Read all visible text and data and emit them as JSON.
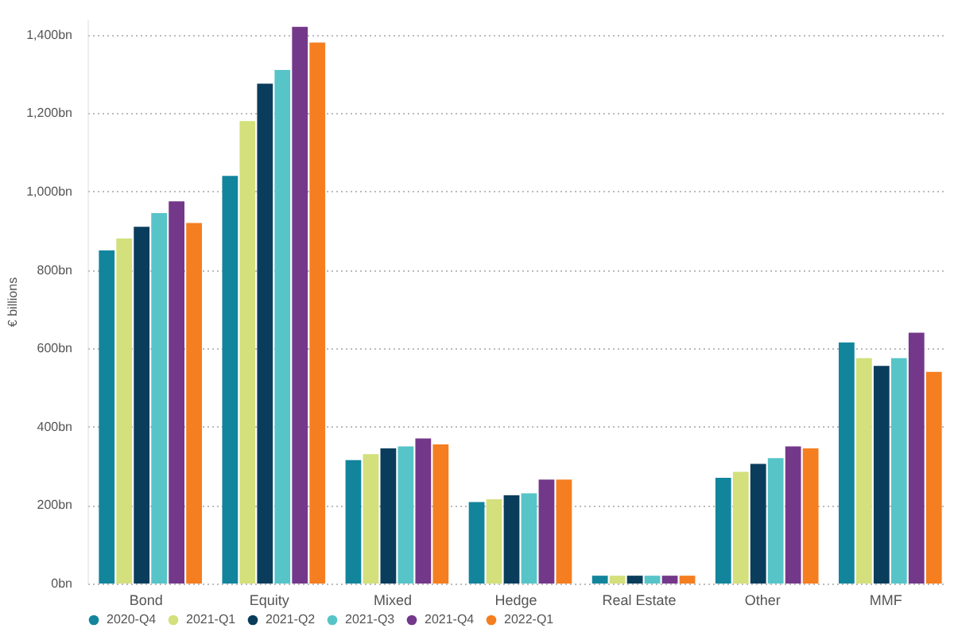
{
  "chart_data": {
    "type": "bar",
    "ylabel": "€ billions",
    "categories": [
      "Bond",
      "Equity",
      "Mixed",
      "Hedge",
      "Real Estate",
      "Other",
      "MMF"
    ],
    "series": [
      {
        "name": "2020-Q4",
        "color": "#12859c",
        "values": [
          850,
          1040,
          315,
          208,
          20,
          270,
          615
        ]
      },
      {
        "name": "2021-Q1",
        "color": "#d3e07c",
        "values": [
          880,
          1180,
          330,
          215,
          20,
          285,
          575
        ]
      },
      {
        "name": "2021-Q2",
        "color": "#0a3d5c",
        "values": [
          910,
          1275,
          345,
          225,
          20,
          305,
          555
        ]
      },
      {
        "name": "2021-Q3",
        "color": "#57c4c8",
        "values": [
          945,
          1310,
          350,
          230,
          20,
          320,
          575
        ]
      },
      {
        "name": "2021-Q4",
        "color": "#74388a",
        "values": [
          975,
          1420,
          370,
          265,
          20,
          350,
          640
        ]
      },
      {
        "name": "2022-Q1",
        "color": "#f57e20",
        "values": [
          920,
          1380,
          355,
          265,
          20,
          345,
          540
        ]
      }
    ],
    "ylim": [
      0,
      1440
    ],
    "yticks": [
      {
        "value": 0,
        "label": "0bn"
      },
      {
        "value": 200,
        "label": "200bn"
      },
      {
        "value": 400,
        "label": "400bn"
      },
      {
        "value": 600,
        "label": "600bn"
      },
      {
        "value": 800,
        "label": "800bn"
      },
      {
        "value": 1000,
        "label": "1,000bn"
      },
      {
        "value": 1200,
        "label": "1,200bn"
      },
      {
        "value": 1400,
        "label": "1,400bn"
      }
    ],
    "grid": "y",
    "legend": "bottom"
  }
}
